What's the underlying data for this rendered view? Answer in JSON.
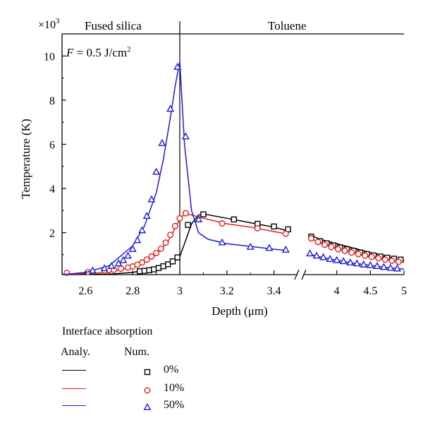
{
  "chart_data": {
    "type": "line",
    "xlabel": "Depth (μm)",
    "ylabel": "Temperature (K)",
    "y_multiplier": "×10",
    "y_multiplier_exp": "3",
    "region_left": "Fused silica",
    "region_right": "Toluene",
    "annotation": {
      "main": "F = 0.5 J/cm",
      "exp": "2"
    },
    "x_segments": [
      {
        "range": [
          2.5,
          3.5
        ],
        "ticks": [
          2.6,
          2.8,
          3,
          3.2,
          3.4
        ],
        "tick_labels": [
          "2.6",
          "2.8",
          "3",
          "3.2",
          "3.4"
        ]
      },
      {
        "range": [
          3.5,
          5.0
        ],
        "ticks": [
          4,
          4.5,
          5
        ],
        "tick_labels": [
          "4",
          "4.5",
          "5"
        ]
      }
    ],
    "y_range": [
      0.1,
      11
    ],
    "y_ticks": [
      2,
      4,
      6,
      8,
      10
    ],
    "y_tick_labels": [
      "2",
      "4",
      "6",
      "8",
      "10"
    ],
    "interface_x": 3.0,
    "legend": {
      "title": "Interface absorption",
      "col_analytic": "Analy.",
      "col_numeric": "Num."
    },
    "series": [
      {
        "name": "0%",
        "color": "#000000",
        "marker": "square",
        "analytic": [
          [
            2.5,
            0.1
          ],
          [
            2.7,
            0.12
          ],
          [
            2.8,
            0.2
          ],
          [
            2.9,
            0.4
          ],
          [
            2.95,
            0.6
          ],
          [
            2.98,
            0.82
          ],
          [
            2.995,
            0.9
          ],
          [
            3.0,
            0.92
          ],
          [
            3.02,
            1.5
          ],
          [
            3.05,
            2.4
          ],
          [
            3.08,
            2.8
          ],
          [
            3.1,
            2.85
          ],
          [
            3.2,
            2.65
          ],
          [
            3.3,
            2.45
          ],
          [
            3.4,
            2.25
          ],
          [
            3.45,
            2.1
          ],
          [
            3.6,
            1.9
          ],
          [
            3.75,
            1.7
          ],
          [
            4.0,
            1.5
          ],
          [
            4.25,
            1.3
          ],
          [
            4.5,
            1.1
          ],
          [
            4.75,
            0.9
          ],
          [
            5.0,
            0.72
          ]
        ],
        "numeric": [
          [
            2.83,
            0.25
          ],
          [
            2.85,
            0.27
          ],
          [
            2.87,
            0.3
          ],
          [
            2.89,
            0.34
          ],
          [
            2.91,
            0.4
          ],
          [
            2.93,
            0.48
          ],
          [
            2.95,
            0.57
          ],
          [
            2.97,
            0.7
          ],
          [
            2.99,
            0.88
          ],
          [
            3.035,
            2.35
          ],
          [
            3.1,
            2.83
          ],
          [
            3.23,
            2.6
          ],
          [
            3.33,
            2.4
          ],
          [
            3.4,
            2.28
          ],
          [
            3.46,
            2.15
          ],
          [
            3.62,
            1.82
          ],
          [
            3.75,
            1.62
          ],
          [
            3.85,
            1.52
          ],
          [
            3.95,
            1.42
          ],
          [
            4.05,
            1.33
          ],
          [
            4.15,
            1.25
          ],
          [
            4.25,
            1.18
          ],
          [
            4.35,
            1.1
          ],
          [
            4.45,
            1.03
          ],
          [
            4.55,
            0.97
          ],
          [
            4.65,
            0.92
          ],
          [
            4.75,
            0.87
          ],
          [
            4.85,
            0.82
          ],
          [
            4.95,
            0.78
          ]
        ]
      },
      {
        "name": "10%",
        "color": "#e0201c",
        "marker": "circle",
        "analytic": [
          [
            2.5,
            0.1
          ],
          [
            2.7,
            0.2
          ],
          [
            2.8,
            0.45
          ],
          [
            2.9,
            1.0
          ],
          [
            2.95,
            1.6
          ],
          [
            2.98,
            2.2
          ],
          [
            3.0,
            2.6
          ],
          [
            3.02,
            2.85
          ],
          [
            3.05,
            2.8
          ],
          [
            3.1,
            2.65
          ],
          [
            3.2,
            2.4
          ],
          [
            3.3,
            2.25
          ],
          [
            3.4,
            2.05
          ],
          [
            3.45,
            1.95
          ],
          [
            3.6,
            1.75
          ],
          [
            3.75,
            1.55
          ],
          [
            4.0,
            1.3
          ],
          [
            4.25,
            1.1
          ],
          [
            4.5,
            0.95
          ],
          [
            4.75,
            0.8
          ],
          [
            5.0,
            0.65
          ]
        ],
        "numeric": [
          [
            2.52,
            0.18
          ],
          [
            2.61,
            0.22
          ],
          [
            2.68,
            0.28
          ],
          [
            2.72,
            0.32
          ],
          [
            2.75,
            0.37
          ],
          [
            2.78,
            0.42
          ],
          [
            2.8,
            0.47
          ],
          [
            2.82,
            0.55
          ],
          [
            2.84,
            0.65
          ],
          [
            2.86,
            0.78
          ],
          [
            2.88,
            0.92
          ],
          [
            2.9,
            1.08
          ],
          [
            2.92,
            1.28
          ],
          [
            2.94,
            1.55
          ],
          [
            2.96,
            1.9
          ],
          [
            2.98,
            2.3
          ],
          [
            3.0,
            2.65
          ],
          [
            3.025,
            2.88
          ],
          [
            3.18,
            2.42
          ],
          [
            3.33,
            2.2
          ],
          [
            3.45,
            1.95
          ],
          [
            3.62,
            1.74
          ],
          [
            3.72,
            1.58
          ],
          [
            3.82,
            1.45
          ],
          [
            3.92,
            1.35
          ],
          [
            4.02,
            1.25
          ],
          [
            4.12,
            1.18
          ],
          [
            4.22,
            1.1
          ],
          [
            4.32,
            1.03
          ],
          [
            4.42,
            0.96
          ],
          [
            4.52,
            0.9
          ],
          [
            4.62,
            0.84
          ],
          [
            4.72,
            0.78
          ],
          [
            4.82,
            0.73
          ],
          [
            4.92,
            0.68
          ]
        ]
      },
      {
        "name": "50%",
        "color": "#1c1cd0",
        "marker": "triangle",
        "analytic": [
          [
            2.5,
            0.1
          ],
          [
            2.6,
            0.2
          ],
          [
            2.7,
            0.5
          ],
          [
            2.8,
            1.4
          ],
          [
            2.85,
            2.3
          ],
          [
            2.9,
            3.8
          ],
          [
            2.93,
            5.3
          ],
          [
            2.96,
            7.2
          ],
          [
            2.98,
            8.6
          ],
          [
            3.0,
            9.75
          ],
          [
            3.02,
            6.0
          ],
          [
            3.05,
            3.0
          ],
          [
            3.08,
            2.0
          ],
          [
            3.12,
            1.7
          ],
          [
            3.2,
            1.5
          ],
          [
            3.3,
            1.38
          ],
          [
            3.4,
            1.25
          ],
          [
            3.45,
            1.2
          ],
          [
            3.6,
            1.02
          ],
          [
            3.75,
            0.9
          ],
          [
            4.0,
            0.75
          ],
          [
            4.25,
            0.62
          ],
          [
            4.5,
            0.52
          ],
          [
            4.75,
            0.42
          ],
          [
            5.0,
            0.35
          ]
        ],
        "numeric": [
          [
            2.63,
            0.28
          ],
          [
            2.68,
            0.38
          ],
          [
            2.71,
            0.48
          ],
          [
            2.74,
            0.6
          ],
          [
            2.76,
            0.75
          ],
          [
            2.78,
            0.95
          ],
          [
            2.8,
            1.25
          ],
          [
            2.82,
            1.65
          ],
          [
            2.84,
            2.1
          ],
          [
            2.86,
            2.75
          ],
          [
            2.88,
            3.5
          ],
          [
            2.9,
            4.75
          ],
          [
            2.925,
            6.05
          ],
          [
            2.96,
            7.6
          ],
          [
            2.99,
            9.5
          ],
          [
            3.025,
            6.35
          ],
          [
            3.08,
            2.6
          ],
          [
            3.18,
            1.55
          ],
          [
            3.3,
            1.35
          ],
          [
            3.38,
            1.3
          ],
          [
            3.45,
            1.22
          ],
          [
            3.6,
            1.05
          ],
          [
            3.7,
            0.95
          ],
          [
            3.8,
            0.88
          ],
          [
            3.9,
            0.8
          ],
          [
            4.0,
            0.75
          ],
          [
            4.1,
            0.7
          ],
          [
            4.2,
            0.64
          ],
          [
            4.3,
            0.6
          ],
          [
            4.4,
            0.55
          ],
          [
            4.5,
            0.52
          ],
          [
            4.6,
            0.48
          ],
          [
            4.7,
            0.44
          ],
          [
            4.8,
            0.4
          ],
          [
            4.9,
            0.37
          ]
        ]
      }
    ]
  }
}
